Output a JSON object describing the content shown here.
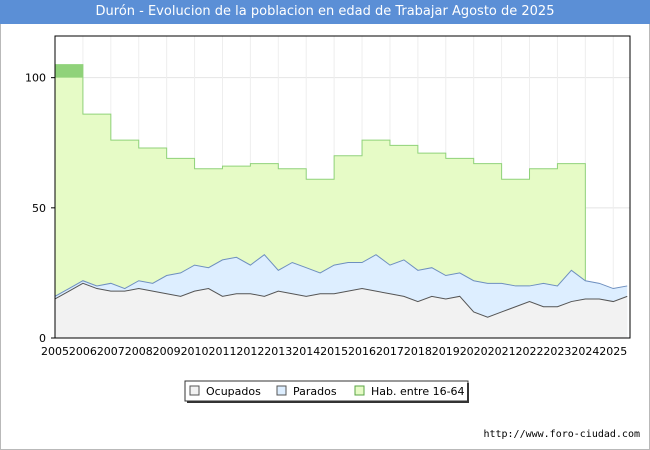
{
  "chart_data": {
    "type": "area",
    "title": "Durón - Evolucion de la poblacion en edad de Trabajar Agosto de 2025",
    "xlabel": "",
    "ylabel": "",
    "xlim": [
      2005,
      2025.6
    ],
    "ylim": [
      0,
      116
    ],
    "yticks": [
      0,
      50,
      100
    ],
    "xticks": [
      2005,
      2006,
      2007,
      2008,
      2009,
      2010,
      2011,
      2012,
      2013,
      2014,
      2015,
      2016,
      2017,
      2018,
      2019,
      2020,
      2021,
      2022,
      2023,
      2024,
      2025
    ],
    "legend": [
      "Ocupados",
      "Parados",
      "Hab. entre 16-64"
    ],
    "series": [
      {
        "name": "Hab. entre 16-64",
        "color": "#e6fbc6",
        "stroke": "#90d27a",
        "years": [
          2005,
          2006,
          2007,
          2008,
          2009,
          2010,
          2011,
          2012,
          2013,
          2014,
          2015,
          2016,
          2017,
          2018,
          2019,
          2020,
          2021,
          2022,
          2023
        ],
        "values": [
          105,
          86,
          76,
          73,
          69,
          65,
          66,
          67,
          65,
          61,
          70,
          76,
          74,
          71,
          69,
          67,
          61,
          65,
          67
        ]
      },
      {
        "name": "Parados",
        "color": "#ddeeff",
        "stroke": "#6e8fbf",
        "x": [
          2005.0,
          2005.5,
          2006.0,
          2006.5,
          2007.0,
          2007.5,
          2008.0,
          2008.5,
          2009.0,
          2009.5,
          2010.0,
          2010.5,
          2011.0,
          2011.5,
          2012.0,
          2012.5,
          2013.0,
          2013.5,
          2014.0,
          2014.5,
          2015.0,
          2015.5,
          2016.0,
          2016.5,
          2017.0,
          2017.5,
          2018.0,
          2018.5,
          2019.0,
          2019.5,
          2020.0,
          2020.5,
          2021.0,
          2021.5,
          2022.0,
          2022.5,
          2023.0,
          2023.5,
          2024.0,
          2024.5,
          2025.0,
          2025.5
        ],
        "values": [
          16,
          19,
          22,
          20,
          21,
          19,
          22,
          21,
          24,
          25,
          28,
          27,
          30,
          31,
          28,
          32,
          26,
          29,
          27,
          25,
          28,
          29,
          29,
          32,
          28,
          30,
          26,
          27,
          24,
          25,
          22,
          21,
          21,
          20,
          20,
          21,
          20,
          26,
          22,
          21,
          19,
          20
        ]
      },
      {
        "name": "Ocupados",
        "color": "#f2f2f2",
        "stroke": "#555555",
        "x": [
          2005.0,
          2005.5,
          2006.0,
          2006.5,
          2007.0,
          2007.5,
          2008.0,
          2008.5,
          2009.0,
          2009.5,
          2010.0,
          2010.5,
          2011.0,
          2011.5,
          2012.0,
          2012.5,
          2013.0,
          2013.5,
          2014.0,
          2014.5,
          2015.0,
          2015.5,
          2016.0,
          2016.5,
          2017.0,
          2017.5,
          2018.0,
          2018.5,
          2019.0,
          2019.5,
          2020.0,
          2020.5,
          2021.0,
          2021.5,
          2022.0,
          2022.5,
          2023.0,
          2023.5,
          2024.0,
          2024.5,
          2025.0,
          2025.5
        ],
        "values": [
          15,
          18,
          21,
          19,
          18,
          18,
          19,
          18,
          17,
          16,
          18,
          19,
          16,
          17,
          17,
          16,
          18,
          17,
          16,
          17,
          17,
          18,
          19,
          18,
          17,
          16,
          14,
          16,
          15,
          16,
          10,
          8,
          10,
          12,
          14,
          12,
          12,
          14,
          15,
          15,
          14,
          16
        ]
      }
    ]
  },
  "footer": {
    "source": "http://www.foro-ciudad.com"
  }
}
